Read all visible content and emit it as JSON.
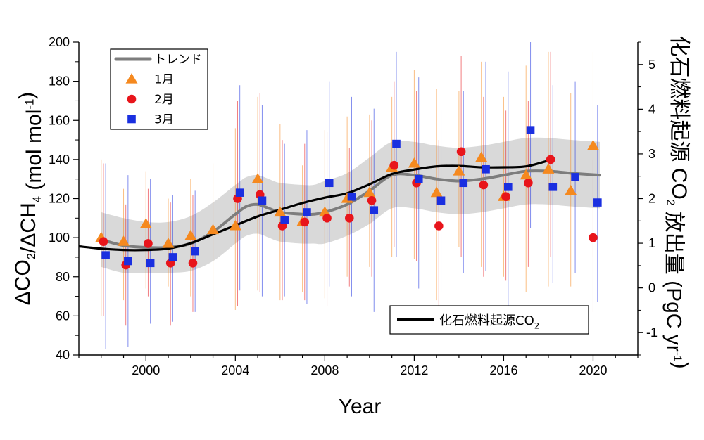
{
  "chart_data": {
    "type": "scatter",
    "x_axis": {
      "label": "Year",
      "range": [
        1997,
        2022
      ],
      "ticks": [
        2000,
        2004,
        2008,
        2012,
        2016,
        2020
      ]
    },
    "y_left": {
      "label": "ΔCO2/ΔCH4 (mol mol-1)",
      "range": [
        40,
        200
      ],
      "ticks": [
        40,
        60,
        80,
        100,
        120,
        140,
        160,
        180,
        200
      ]
    },
    "y_right": {
      "label": "化石燃料起源 CO2 放出量 (PgC yr-1)",
      "range": [
        -1.5,
        5.5
      ],
      "ticks": [
        -1,
        0,
        1,
        2,
        3,
        4,
        5
      ]
    },
    "legend_main": {
      "position": "top-left",
      "entries": [
        {
          "key": "trend",
          "label": "トレンド"
        },
        {
          "key": "jan",
          "label": "1月"
        },
        {
          "key": "feb",
          "label": "2月"
        },
        {
          "key": "mar",
          "label": "3月"
        }
      ]
    },
    "legend_fossil": {
      "position": "bottom-right",
      "label": "化石燃料起源CO2"
    },
    "colors": {
      "jan": "#f5891f",
      "feb": "#e8151b",
      "mar": "#1a2fe0",
      "trend": "#7d7d7d",
      "band": "#d9d9d9",
      "fossil": "#000000"
    },
    "series": [
      {
        "name": "1月",
        "marker": "triangle",
        "x": [
          1998.0,
          1999.0,
          2000.0,
          2001.0,
          2002.0,
          2003.0,
          2004.0,
          2005.0,
          2006.0,
          2007.0,
          2008.0,
          2009.0,
          2010.0,
          2011.0,
          2012.0,
          2013.0,
          2014.0,
          2015.0,
          2016.0,
          2017.0,
          2018.0,
          2019.0,
          2020.0
        ],
        "y": [
          100,
          98,
          107,
          97,
          101,
          104,
          106,
          130,
          113,
          108,
          113,
          120,
          123,
          136,
          138,
          123,
          134,
          141,
          121,
          132,
          135,
          124,
          147
        ],
        "err_low": [
          60,
          68,
          74,
          75,
          70,
          68,
          63,
          73,
          68,
          72,
          69,
          80,
          85,
          90,
          89,
          68,
          95,
          85,
          80,
          72,
          75,
          75,
          90
        ],
        "err_high": [
          140,
          125,
          134,
          120,
          130,
          138,
          156,
          172,
          158,
          137,
          155,
          162,
          163,
          172,
          186,
          176,
          175,
          190,
          172,
          188,
          195,
          174,
          195
        ]
      },
      {
        "name": "2月",
        "marker": "circle",
        "x": [
          1998.1,
          1999.1,
          2000.1,
          2001.1,
          2002.1,
          2004.1,
          2005.1,
          2006.1,
          2007.1,
          2008.1,
          2009.1,
          2010.1,
          2011.1,
          2012.1,
          2013.1,
          2014.1,
          2015.1,
          2016.1,
          2017.1,
          2018.1,
          2020.0
        ],
        "y": [
          98,
          86,
          97,
          87,
          87,
          120,
          122,
          106,
          108,
          110,
          110,
          119,
          137,
          128,
          106,
          144,
          127,
          121,
          128,
          140,
          100
        ],
        "err_low": [
          60,
          55,
          70,
          55,
          62,
          65,
          72,
          68,
          68,
          65,
          75,
          80,
          95,
          88,
          65,
          90,
          80,
          78,
          85,
          90,
          62
        ],
        "err_high": [
          138,
          117,
          125,
          118,
          122,
          170,
          174,
          150,
          148,
          154,
          146,
          160,
          180,
          175,
          150,
          193,
          172,
          165,
          170,
          195,
          140
        ]
      },
      {
        "name": "3月",
        "marker": "square",
        "x": [
          1998.2,
          1999.2,
          2000.2,
          2001.2,
          2002.2,
          2004.2,
          2005.2,
          2006.2,
          2007.2,
          2008.2,
          2009.2,
          2010.2,
          2011.2,
          2012.2,
          2013.2,
          2014.2,
          2015.2,
          2016.2,
          2017.2,
          2018.2,
          2019.2,
          2020.2
        ],
        "y": [
          91,
          88,
          87,
          90,
          93,
          123,
          119,
          109,
          113,
          128,
          121,
          114,
          148,
          130,
          119,
          128,
          135,
          126,
          155,
          126,
          131,
          118
        ],
        "err_low": [
          43,
          44,
          56,
          57,
          62,
          73,
          70,
          70,
          66,
          75,
          70,
          62,
          90,
          74,
          72,
          82,
          83,
          65,
          105,
          77,
          82,
          67
        ],
        "err_high": [
          138,
          132,
          130,
          122,
          124,
          178,
          168,
          148,
          155,
          180,
          172,
          166,
          195,
          182,
          165,
          175,
          190,
          185,
          200,
          178,
          180,
          168
        ]
      }
    ],
    "trend": {
      "name": "トレンド",
      "x": [
        1998.0,
        1999.0,
        2000.0,
        2001.0,
        2002.0,
        2003.0,
        2004.0,
        2004.5,
        2005.0,
        2005.5,
        2006.0,
        2007.0,
        2007.5,
        2008.0,
        2009.0,
        2010.0,
        2011.0,
        2012.0,
        2013.0,
        2014.0,
        2015.0,
        2016.0,
        2017.0,
        2018.0,
        2019.0,
        2020.3
      ],
      "y": [
        99,
        96,
        95,
        95,
        97,
        103,
        112,
        116,
        117,
        115,
        113,
        112,
        112,
        113,
        117,
        124,
        132,
        132,
        130,
        129,
        130,
        132,
        134,
        134,
        133,
        132
      ],
      "band_half_width": [
        14,
        14,
        13,
        13,
        14,
        15,
        15,
        15,
        15,
        15,
        15,
        15,
        15,
        16,
        16,
        17,
        17,
        17,
        17,
        17,
        17,
        17,
        17,
        17,
        17,
        17
      ]
    },
    "fossil_co2": {
      "name": "化石燃料起源CO2",
      "axis": "right",
      "x": [
        1997.0,
        1998.0,
        1999.0,
        2000.0,
        2001.0,
        2002.0,
        2003.0,
        2004.0,
        2005.0,
        2006.0,
        2007.0,
        2008.0,
        2009.0,
        2010.0,
        2011.0,
        2012.0,
        2013.0,
        2014.0,
        2015.0,
        2016.0,
        2017.0,
        2018.0
      ],
      "y": [
        0.93,
        0.88,
        0.85,
        0.85,
        0.88,
        1.0,
        1.2,
        1.4,
        1.6,
        1.75,
        1.9,
        2.02,
        2.12,
        2.32,
        2.55,
        2.65,
        2.72,
        2.73,
        2.7,
        2.7,
        2.72,
        2.85
      ]
    }
  }
}
